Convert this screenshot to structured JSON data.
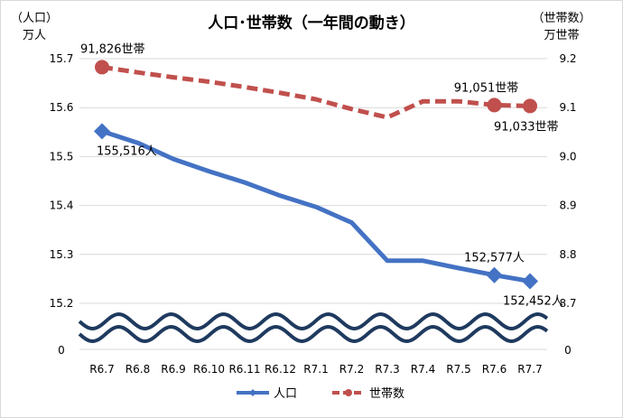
{
  "chart_data": {
    "type": "line",
    "title": "人口･世帯数（一年間の動き）",
    "left_axis": {
      "label_line1": "（人口）",
      "label_line2": "万人",
      "ticks": [
        "15.2",
        "15.3",
        "15.4",
        "15.5",
        "15.6",
        "15.7"
      ],
      "ylim": [
        15.2,
        15.7
      ],
      "break_label": "0"
    },
    "right_axis": {
      "label_line1": "（世帯数）",
      "label_line2": "万世帯",
      "ticks": [
        "8.7",
        "8.8",
        "8.9",
        "9.0",
        "9.1",
        "9.2"
      ],
      "ylim": [
        8.7,
        9.2
      ],
      "break_label": "0"
    },
    "categories": [
      "R6.7",
      "R6.8",
      "R6.9",
      "R6.10",
      "R6.11",
      "R6.12",
      "R7.1",
      "R7.2",
      "R7.3",
      "R7.4",
      "R7.5",
      "R7.6",
      "R7.7"
    ],
    "series": [
      {
        "name": "人口",
        "axis": "left",
        "color": "#4472c4",
        "style": "solid",
        "marker": "diamond",
        "values": [
          15.5516,
          15.528,
          15.495,
          15.47,
          15.447,
          15.42,
          15.397,
          15.365,
          15.287,
          15.287,
          15.272,
          15.2577,
          15.2452
        ]
      },
      {
        "name": "世帯数",
        "axis": "right",
        "color": "#c0504d",
        "style": "dashed",
        "marker": "circle",
        "values": [
          9.1826,
          9.172,
          9.162,
          9.153,
          9.142,
          9.13,
          9.117,
          9.097,
          9.08,
          9.113,
          9.113,
          9.1051,
          9.1033
        ]
      }
    ],
    "annotations": [
      {
        "text": "155,516人",
        "series": 0,
        "index": 0
      },
      {
        "text": "152,577人",
        "series": 0,
        "index": 11
      },
      {
        "text": "152,452人",
        "series": 0,
        "index": 12
      },
      {
        "text": "91,826世帯",
        "series": 1,
        "index": 0
      },
      {
        "text": "91,051世帯",
        "series": 1,
        "index": 11
      },
      {
        "text": "91,033世帯",
        "series": 1,
        "index": 12
      }
    ],
    "grid": true,
    "legend_position": "bottom",
    "axis_break": true
  }
}
